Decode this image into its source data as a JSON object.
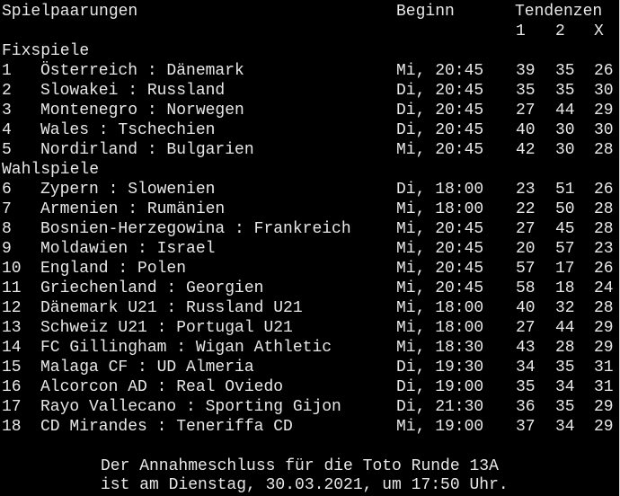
{
  "header": {
    "title": "Spielpaarungen",
    "beginn": "Beginn",
    "tendenzen": "Tendenzen",
    "col_1": "1",
    "col_2": "2",
    "col_x": "X"
  },
  "sections": [
    {
      "label": "Fixspiele",
      "matches": [
        {
          "nr": "1",
          "match": "Österreich : Dänemark",
          "time": "Mi, 20:45",
          "t1": "39",
          "t2": "35",
          "tx": "26"
        },
        {
          "nr": "2",
          "match": "Slowakei : Russland",
          "time": "Di, 20:45",
          "t1": "35",
          "t2": "35",
          "tx": "30"
        },
        {
          "nr": "3",
          "match": "Montenegro : Norwegen",
          "time": "Di, 20:45",
          "t1": "27",
          "t2": "44",
          "tx": "29"
        },
        {
          "nr": "4",
          "match": "Wales : Tschechien",
          "time": "Di, 20:45",
          "t1": "40",
          "t2": "30",
          "tx": "30"
        },
        {
          "nr": "5",
          "match": "Nordirland : Bulgarien",
          "time": "Mi, 20:45",
          "t1": "42",
          "t2": "30",
          "tx": "28"
        }
      ]
    },
    {
      "label": "Wahlspiele",
      "matches": [
        {
          "nr": "6",
          "match": "Zypern : Slowenien",
          "time": "Di, 18:00",
          "t1": "23",
          "t2": "51",
          "tx": "26"
        },
        {
          "nr": "7",
          "match": "Armenien : Rumänien",
          "time": "Mi, 18:00",
          "t1": "22",
          "t2": "50",
          "tx": "28"
        },
        {
          "nr": "8",
          "match": "Bosnien-Herzegowina : Frankreich",
          "time": "Mi, 20:45",
          "t1": "27",
          "t2": "45",
          "tx": "28"
        },
        {
          "nr": "9",
          "match": "Moldawien : Israel",
          "time": "Mi, 20:45",
          "t1": "20",
          "t2": "57",
          "tx": "23"
        },
        {
          "nr": "10",
          "match": "England : Polen",
          "time": "Mi, 20:45",
          "t1": "57",
          "t2": "17",
          "tx": "26"
        },
        {
          "nr": "11",
          "match": "Griechenland : Georgien",
          "time": "Mi, 20:45",
          "t1": "58",
          "t2": "18",
          "tx": "24"
        },
        {
          "nr": "12",
          "match": "Dänemark U21 : Russland U21",
          "time": "Mi, 18:00",
          "t1": "40",
          "t2": "32",
          "tx": "28"
        },
        {
          "nr": "13",
          "match": "Schweiz U21 : Portugal U21",
          "time": "Mi, 18:00",
          "t1": "27",
          "t2": "44",
          "tx": "29"
        },
        {
          "nr": "14",
          "match": "FC Gillingham : Wigan Athletic",
          "time": "Mi, 18:30",
          "t1": "43",
          "t2": "28",
          "tx": "29"
        },
        {
          "nr": "15",
          "match": "Malaga CF : UD Almeria",
          "time": "Di, 19:30",
          "t1": "34",
          "t2": "35",
          "tx": "31"
        },
        {
          "nr": "16",
          "match": "Alcorcon AD : Real Oviedo",
          "time": "Di, 19:00",
          "t1": "35",
          "t2": "34",
          "tx": "31"
        },
        {
          "nr": "17",
          "match": "Rayo Vallecano : Sporting Gijon",
          "time": "Di, 21:30",
          "t1": "36",
          "t2": "35",
          "tx": "29"
        },
        {
          "nr": "18",
          "match": "CD Mirandes : Teneriffa CD",
          "time": "Mi, 19:00",
          "t1": "37",
          "t2": "34",
          "tx": "29"
        }
      ]
    }
  ],
  "footer": {
    "line1": "Der Annahmeschluss für die Toto Runde 13A",
    "line2": "ist am Dienstag, 30.03.2021, um 17:50 Uhr."
  }
}
